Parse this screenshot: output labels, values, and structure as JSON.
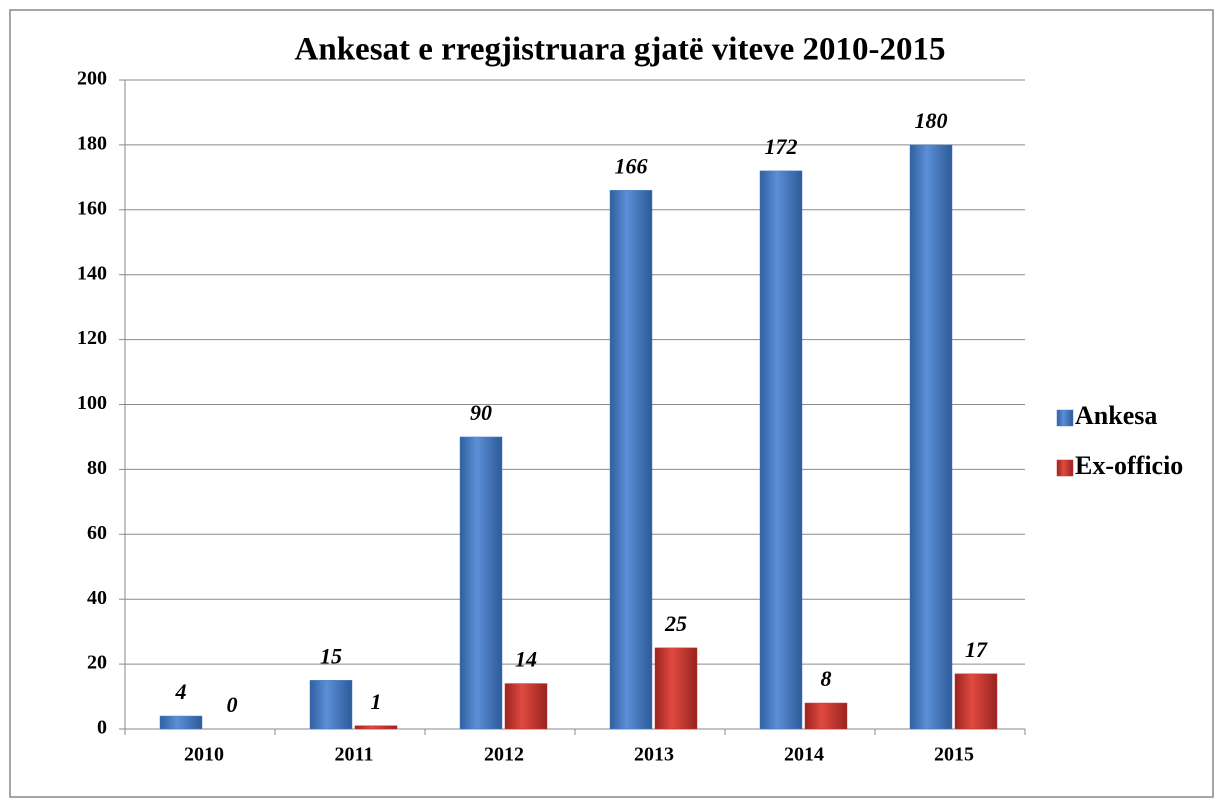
{
  "chart_data": {
    "type": "bar",
    "title": "Ankesat e rregjistruara gjatë viteve 2010-2015",
    "categories": [
      "2010",
      "2011",
      "2012",
      "2013",
      "2014",
      "2015"
    ],
    "series": [
      {
        "name": "Ankesa",
        "color": "#4a7ec8",
        "values": [
          4,
          15,
          90,
          166,
          172,
          180
        ]
      },
      {
        "name": "Ex-officio",
        "color": "#c8342c",
        "values": [
          0,
          1,
          14,
          25,
          8,
          17
        ]
      }
    ],
    "ylim": [
      0,
      200
    ],
    "yticks": [
      0,
      20,
      40,
      60,
      80,
      100,
      120,
      140,
      160,
      180,
      200
    ],
    "grid": true,
    "legend": "right"
  }
}
